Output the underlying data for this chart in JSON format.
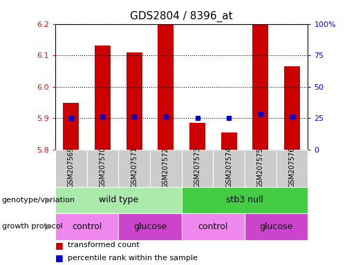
{
  "title": "GDS2804 / 8396_at",
  "samples": [
    "GSM207569",
    "GSM207570",
    "GSM207571",
    "GSM207572",
    "GSM207573",
    "GSM207574",
    "GSM207575",
    "GSM207576"
  ],
  "bar_values": [
    5.95,
    6.13,
    6.11,
    6.2,
    5.885,
    5.855,
    6.2,
    6.065
  ],
  "bar_base": 5.8,
  "percentile_values": [
    5.9,
    5.905,
    5.905,
    5.905,
    5.9,
    5.9,
    5.915,
    5.905
  ],
  "ylim": [
    5.8,
    6.2
  ],
  "yticks_left": [
    5.8,
    5.9,
    6.0,
    6.1,
    6.2
  ],
  "yticks_right_labels": [
    "0",
    "25",
    "50",
    "75",
    "100%"
  ],
  "bar_color": "#cc0000",
  "dot_color": "#0000cc",
  "genotype_groups": [
    {
      "label": "wild type",
      "start": 0,
      "end": 4,
      "color": "#aaeaaa"
    },
    {
      "label": "stb3 null",
      "start": 4,
      "end": 8,
      "color": "#44cc44"
    }
  ],
  "protocol_groups": [
    {
      "label": "control",
      "start": 0,
      "end": 2,
      "color": "#ee88ee"
    },
    {
      "label": "glucose",
      "start": 2,
      "end": 4,
      "color": "#cc44cc"
    },
    {
      "label": "control",
      "start": 4,
      "end": 6,
      "color": "#ee88ee"
    },
    {
      "label": "glucose",
      "start": 6,
      "end": 8,
      "color": "#cc44cc"
    }
  ],
  "legend_items": [
    {
      "label": "transformed count",
      "color": "#cc0000"
    },
    {
      "label": "percentile rank within the sample",
      "color": "#0000cc"
    }
  ],
  "tick_bg_color": "#cccccc",
  "label_genotype": "genotype/variation",
  "label_protocol": "growth protocol"
}
